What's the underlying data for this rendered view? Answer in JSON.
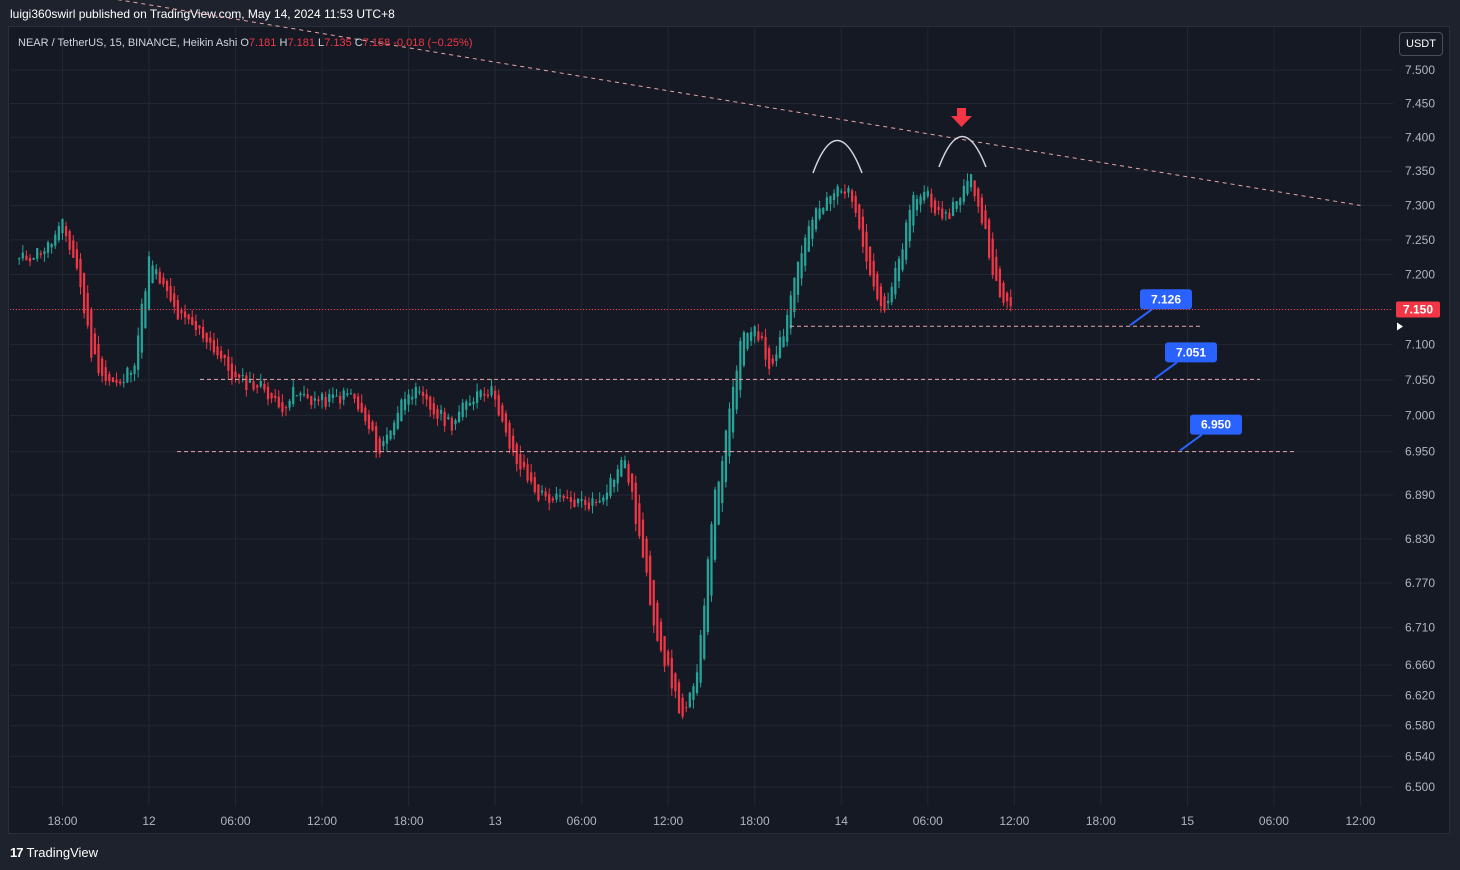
{
  "header": {
    "published": "luigi360swirl published on TradingView.com, May 14, 2024 11:53 UTC+8"
  },
  "legend": {
    "symbol": "NEAR / TetherUS, 15, BINANCE, Heikin Ashi",
    "o_label": "O",
    "o_value": "7.181",
    "h_label": "H",
    "h_value": "7.181",
    "l_label": "L",
    "l_value": "7.135",
    "c_label": "C",
    "c_value": "7.158",
    "change": "-0.018 (−0.25%)"
  },
  "currency_button": "USDT",
  "footer": {
    "brand": "TradingView",
    "logo": "17"
  },
  "colors": {
    "background": "#151924",
    "up": "#26a69a",
    "down": "#f23645",
    "grid": "#232733",
    "level_line": "#e9a5a9",
    "callout": "#2962ff",
    "arrow": "#f23645",
    "price_label": "#f23645"
  },
  "chart_data": {
    "type": "candlestick",
    "style": "Heikin Ashi",
    "symbol": "NEAR/USDT",
    "interval": "15",
    "exchange": "BINANCE",
    "ylim": [
      6.48,
      7.54
    ],
    "y_axis_scale": "log",
    "y_ticks": [
      "7.500",
      "7.450",
      "7.400",
      "7.350",
      "7.300",
      "7.250",
      "7.200",
      "7.150",
      "7.100",
      "7.050",
      "7.000",
      "6.950",
      "6.890",
      "6.830",
      "6.770",
      "6.710",
      "6.660",
      "6.620",
      "6.580",
      "6.540",
      "6.500"
    ],
    "x_ticks": [
      "18:00",
      "12",
      "06:00",
      "12:00",
      "18:00",
      "13",
      "06:00",
      "12:00",
      "18:00",
      "14",
      "06:00",
      "12:00",
      "18:00",
      "15",
      "06:00",
      "12:00"
    ],
    "current_price": "7.150",
    "grid": true,
    "price_path": [
      {
        "t": "May 11 15:00",
        "p": 7.22
      },
      {
        "t": "May 11 17:00",
        "p": 7.24
      },
      {
        "t": "May 11 18:00",
        "p": 7.27
      },
      {
        "t": "May 11 19:00",
        "p": 7.21
      },
      {
        "t": "May 11 20:00",
        "p": 7.09
      },
      {
        "t": "May 11 21:00",
        "p": 7.05
      },
      {
        "t": "May 11 22:00",
        "p": 7.04
      },
      {
        "t": "May 11 23:00",
        "p": 7.08
      },
      {
        "t": "May 12 00:00",
        "p": 7.22
      },
      {
        "t": "May 12 02:00",
        "p": 7.14
      },
      {
        "t": "May 12 04:00",
        "p": 7.11
      },
      {
        "t": "May 12 06:00",
        "p": 7.05
      },
      {
        "t": "May 12 08:00",
        "p": 7.04
      },
      {
        "t": "May 12 09:00",
        "p": 7.01
      },
      {
        "t": "May 12 10:00",
        "p": 7.03
      },
      {
        "t": "May 12 12:00",
        "p": 7.02
      },
      {
        "t": "May 12 14:00",
        "p": 7.03
      },
      {
        "t": "May 12 16:00",
        "p": 6.95
      },
      {
        "t": "May 12 18:00",
        "p": 7.04
      },
      {
        "t": "May 12 20:00",
        "p": 7.0
      },
      {
        "t": "May 12 21:00",
        "p": 6.99
      },
      {
        "t": "May 12 23:00",
        "p": 7.04
      },
      {
        "t": "May 13 00:00",
        "p": 7.03
      },
      {
        "t": "May 13 01:00",
        "p": 6.95
      },
      {
        "t": "May 13 03:00",
        "p": 6.89
      },
      {
        "t": "May 13 05:00",
        "p": 6.88
      },
      {
        "t": "May 13 07:00",
        "p": 6.88
      },
      {
        "t": "May 13 09:00",
        "p": 6.94
      },
      {
        "t": "May 13 10:00",
        "p": 6.83
      },
      {
        "t": "May 13 11:00",
        "p": 6.72
      },
      {
        "t": "May 13 12:00",
        "p": 6.65
      },
      {
        "t": "May 13 13:00",
        "p": 6.59
      },
      {
        "t": "May 13 14:00",
        "p": 6.64
      },
      {
        "t": "May 13 15:00",
        "p": 6.86
      },
      {
        "t": "May 13 16:00",
        "p": 6.97
      },
      {
        "t": "May 13 17:00",
        "p": 7.1
      },
      {
        "t": "May 13 18:00",
        "p": 7.13
      },
      {
        "t": "May 13 19:00",
        "p": 7.07
      },
      {
        "t": "May 13 20:00",
        "p": 7.12
      },
      {
        "t": "May 13 21:00",
        "p": 7.22
      },
      {
        "t": "May 13 22:00",
        "p": 7.28
      },
      {
        "t": "May 14 00:00",
        "p": 7.33
      },
      {
        "t": "May 14 01:00",
        "p": 7.3
      },
      {
        "t": "May 14 02:00",
        "p": 7.2
      },
      {
        "t": "May 14 03:00",
        "p": 7.14
      },
      {
        "t": "May 14 04:00",
        "p": 7.22
      },
      {
        "t": "May 14 05:00",
        "p": 7.31
      },
      {
        "t": "May 14 06:00",
        "p": 7.32
      },
      {
        "t": "May 14 07:00",
        "p": 7.27
      },
      {
        "t": "May 14 08:00",
        "p": 7.31
      },
      {
        "t": "May 14 09:00",
        "p": 7.34
      },
      {
        "t": "May 14 10:00",
        "p": 7.26
      },
      {
        "t": "May 14 11:00",
        "p": 7.16
      },
      {
        "t": "May 14 11:45",
        "p": 7.158
      }
    ],
    "horizontal_levels": [
      {
        "price": 7.126,
        "label": "7.126"
      },
      {
        "price": 7.051,
        "label": "7.051"
      },
      {
        "price": 6.95,
        "label": "6.950"
      }
    ],
    "trendline": {
      "from": {
        "t": "May 11 18:00",
        "p": 7.62
      },
      "to": {
        "t": "May 15 12:00",
        "p": 7.3
      }
    },
    "annotations": [
      "double-top arcs at ~7.37 and ~7.39",
      "red down arrow above second top"
    ]
  }
}
